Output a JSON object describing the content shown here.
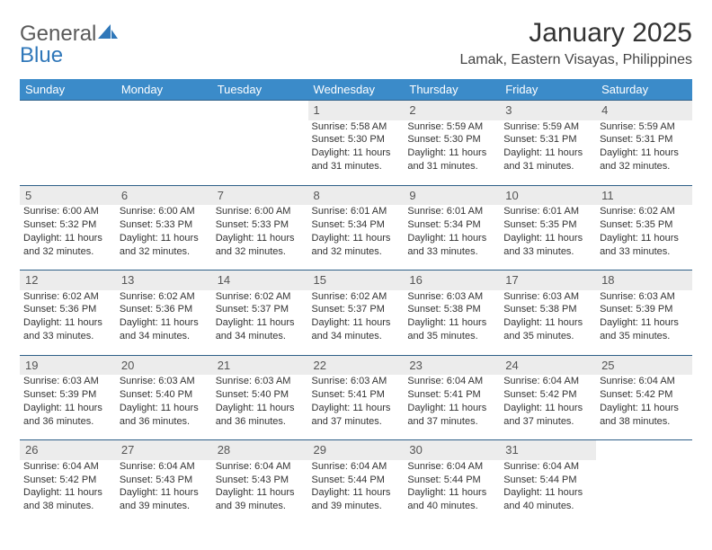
{
  "logo": {
    "text_general": "General",
    "text_blue": "Blue"
  },
  "title": "January 2025",
  "location": "Lamak, Eastern Visayas, Philippines",
  "colors": {
    "header_bg": "#3b8bc9",
    "header_text": "#ffffff",
    "row_divider": "#2e5f88",
    "daynum_bg": "#ececec",
    "page_bg": "#ffffff",
    "body_text": "#333333",
    "logo_gray": "#5a5a5a",
    "logo_blue": "#2f77b9"
  },
  "columns": [
    "Sunday",
    "Monday",
    "Tuesday",
    "Wednesday",
    "Thursday",
    "Friday",
    "Saturday"
  ],
  "weeks": [
    [
      null,
      null,
      null,
      {
        "day": "1",
        "sunrise": "5:58 AM",
        "sunset": "5:30 PM",
        "daylight": "11 hours and 31 minutes."
      },
      {
        "day": "2",
        "sunrise": "5:59 AM",
        "sunset": "5:30 PM",
        "daylight": "11 hours and 31 minutes."
      },
      {
        "day": "3",
        "sunrise": "5:59 AM",
        "sunset": "5:31 PM",
        "daylight": "11 hours and 31 minutes."
      },
      {
        "day": "4",
        "sunrise": "5:59 AM",
        "sunset": "5:31 PM",
        "daylight": "11 hours and 32 minutes."
      }
    ],
    [
      {
        "day": "5",
        "sunrise": "6:00 AM",
        "sunset": "5:32 PM",
        "daylight": "11 hours and 32 minutes."
      },
      {
        "day": "6",
        "sunrise": "6:00 AM",
        "sunset": "5:33 PM",
        "daylight": "11 hours and 32 minutes."
      },
      {
        "day": "7",
        "sunrise": "6:00 AM",
        "sunset": "5:33 PM",
        "daylight": "11 hours and 32 minutes."
      },
      {
        "day": "8",
        "sunrise": "6:01 AM",
        "sunset": "5:34 PM",
        "daylight": "11 hours and 32 minutes."
      },
      {
        "day": "9",
        "sunrise": "6:01 AM",
        "sunset": "5:34 PM",
        "daylight": "11 hours and 33 minutes."
      },
      {
        "day": "10",
        "sunrise": "6:01 AM",
        "sunset": "5:35 PM",
        "daylight": "11 hours and 33 minutes."
      },
      {
        "day": "11",
        "sunrise": "6:02 AM",
        "sunset": "5:35 PM",
        "daylight": "11 hours and 33 minutes."
      }
    ],
    [
      {
        "day": "12",
        "sunrise": "6:02 AM",
        "sunset": "5:36 PM",
        "daylight": "11 hours and 33 minutes."
      },
      {
        "day": "13",
        "sunrise": "6:02 AM",
        "sunset": "5:36 PM",
        "daylight": "11 hours and 34 minutes."
      },
      {
        "day": "14",
        "sunrise": "6:02 AM",
        "sunset": "5:37 PM",
        "daylight": "11 hours and 34 minutes."
      },
      {
        "day": "15",
        "sunrise": "6:02 AM",
        "sunset": "5:37 PM",
        "daylight": "11 hours and 34 minutes."
      },
      {
        "day": "16",
        "sunrise": "6:03 AM",
        "sunset": "5:38 PM",
        "daylight": "11 hours and 35 minutes."
      },
      {
        "day": "17",
        "sunrise": "6:03 AM",
        "sunset": "5:38 PM",
        "daylight": "11 hours and 35 minutes."
      },
      {
        "day": "18",
        "sunrise": "6:03 AM",
        "sunset": "5:39 PM",
        "daylight": "11 hours and 35 minutes."
      }
    ],
    [
      {
        "day": "19",
        "sunrise": "6:03 AM",
        "sunset": "5:39 PM",
        "daylight": "11 hours and 36 minutes."
      },
      {
        "day": "20",
        "sunrise": "6:03 AM",
        "sunset": "5:40 PM",
        "daylight": "11 hours and 36 minutes."
      },
      {
        "day": "21",
        "sunrise": "6:03 AM",
        "sunset": "5:40 PM",
        "daylight": "11 hours and 36 minutes."
      },
      {
        "day": "22",
        "sunrise": "6:03 AM",
        "sunset": "5:41 PM",
        "daylight": "11 hours and 37 minutes."
      },
      {
        "day": "23",
        "sunrise": "6:04 AM",
        "sunset": "5:41 PM",
        "daylight": "11 hours and 37 minutes."
      },
      {
        "day": "24",
        "sunrise": "6:04 AM",
        "sunset": "5:42 PM",
        "daylight": "11 hours and 37 minutes."
      },
      {
        "day": "25",
        "sunrise": "6:04 AM",
        "sunset": "5:42 PM",
        "daylight": "11 hours and 38 minutes."
      }
    ],
    [
      {
        "day": "26",
        "sunrise": "6:04 AM",
        "sunset": "5:42 PM",
        "daylight": "11 hours and 38 minutes."
      },
      {
        "day": "27",
        "sunrise": "6:04 AM",
        "sunset": "5:43 PM",
        "daylight": "11 hours and 39 minutes."
      },
      {
        "day": "28",
        "sunrise": "6:04 AM",
        "sunset": "5:43 PM",
        "daylight": "11 hours and 39 minutes."
      },
      {
        "day": "29",
        "sunrise": "6:04 AM",
        "sunset": "5:44 PM",
        "daylight": "11 hours and 39 minutes."
      },
      {
        "day": "30",
        "sunrise": "6:04 AM",
        "sunset": "5:44 PM",
        "daylight": "11 hours and 40 minutes."
      },
      {
        "day": "31",
        "sunrise": "6:04 AM",
        "sunset": "5:44 PM",
        "daylight": "11 hours and 40 minutes."
      },
      null
    ]
  ],
  "labels": {
    "sunrise": "Sunrise:",
    "sunset": "Sunset:",
    "daylight": "Daylight:"
  }
}
